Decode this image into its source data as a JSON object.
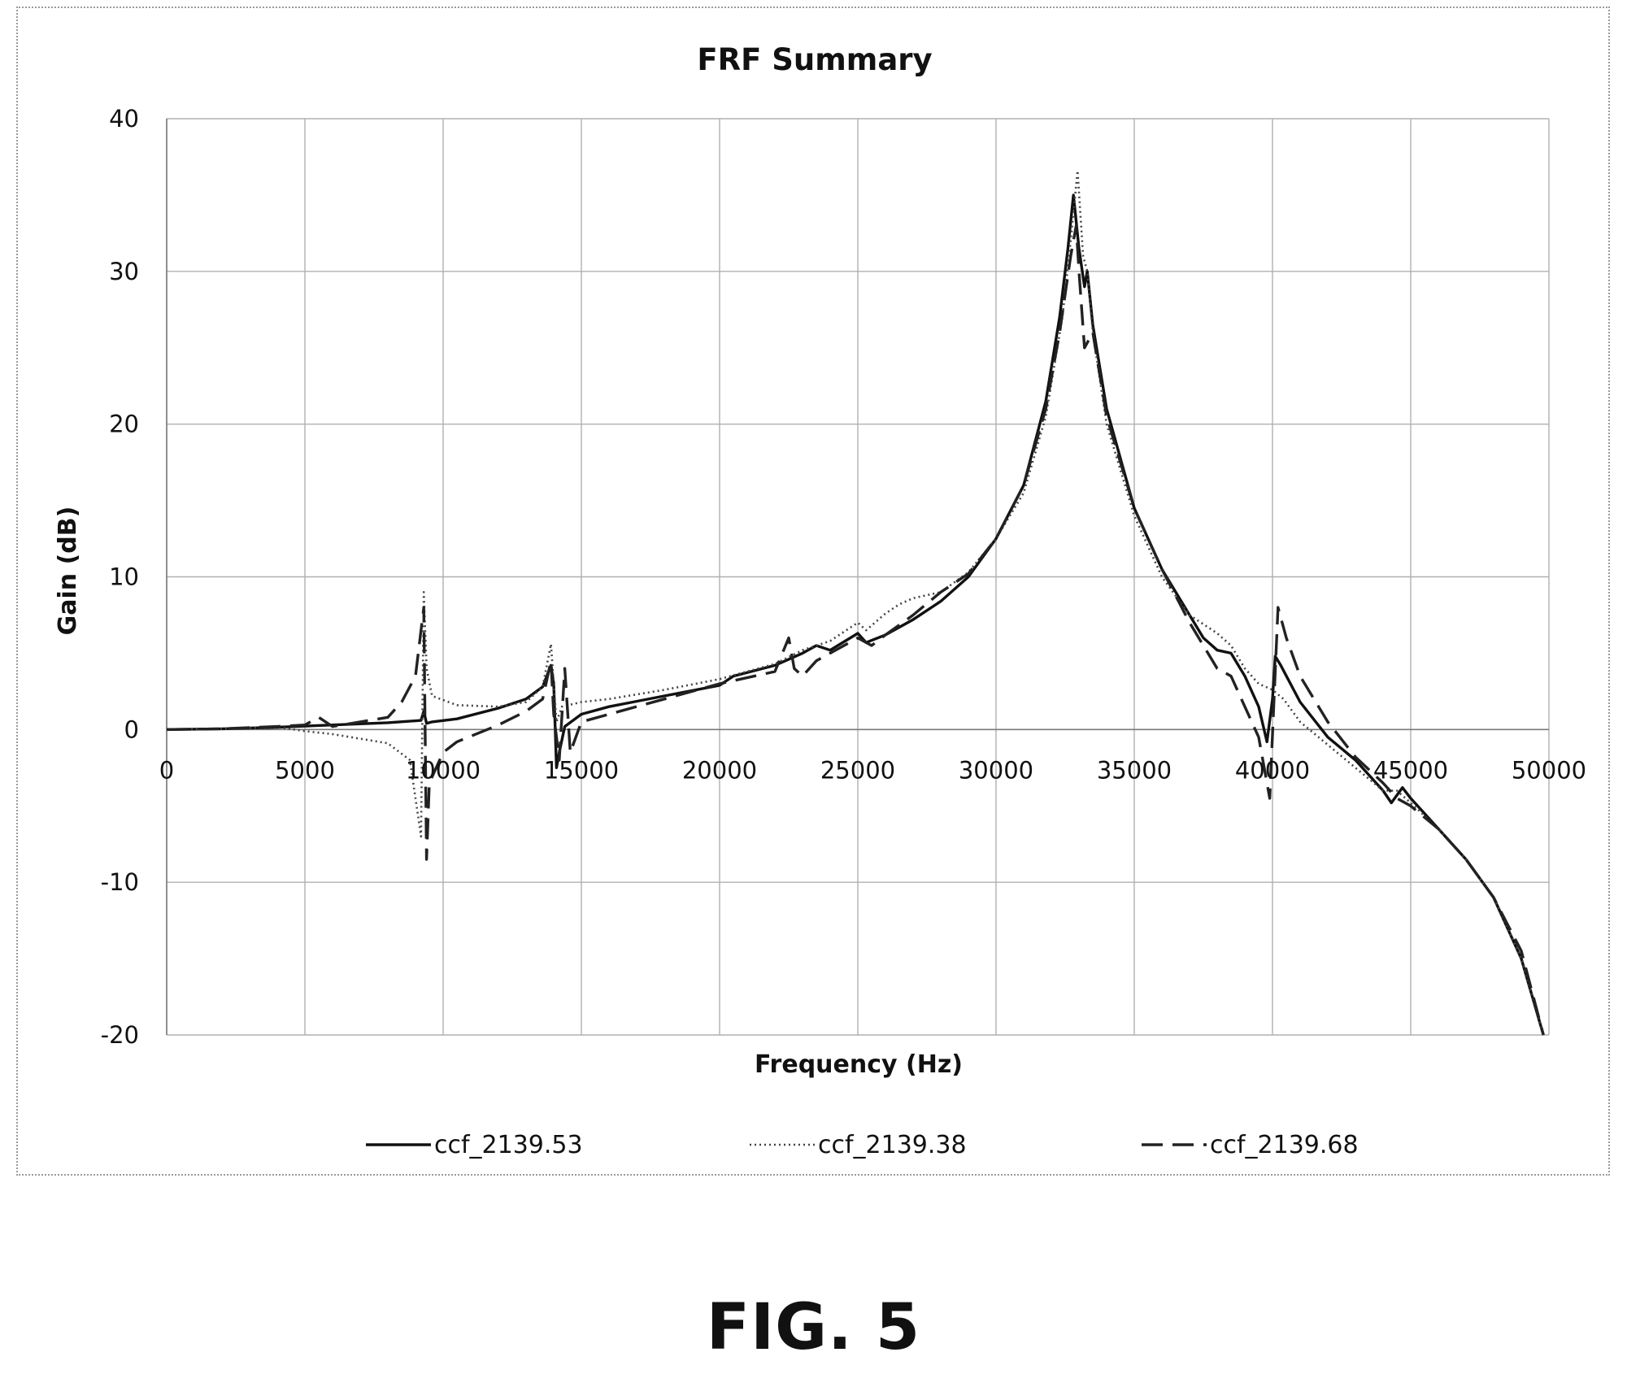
{
  "figure_caption": "FIG. 5",
  "chart_data": {
    "type": "line",
    "title": "FRF Summary",
    "xlabel": "Frequency (Hz)",
    "ylabel": "Gain (dB)",
    "xlim": [
      0,
      50000
    ],
    "ylim": [
      -20,
      40
    ],
    "xticks": [
      0,
      5000,
      10000,
      15000,
      20000,
      25000,
      30000,
      35000,
      40000,
      45000,
      50000
    ],
    "yticks": [
      -20,
      -10,
      0,
      10,
      20,
      30,
      40
    ],
    "grid": true,
    "legend_position": "bottom",
    "series": [
      {
        "name": "ccf_2139.53",
        "style": "solid",
        "color": "#111111",
        "points": [
          [
            0,
            0
          ],
          [
            2000,
            0.05
          ],
          [
            4000,
            0.15
          ],
          [
            6000,
            0.3
          ],
          [
            8000,
            0.45
          ],
          [
            9200,
            0.6
          ],
          [
            9300,
            1.2
          ],
          [
            9400,
            0.4
          ],
          [
            9600,
            0.5
          ],
          [
            10500,
            0.7
          ],
          [
            12000,
            1.4
          ],
          [
            13000,
            2.0
          ],
          [
            13600,
            2.8
          ],
          [
            13900,
            4.2
          ],
          [
            14000,
            3.0
          ],
          [
            14100,
            -2.5
          ],
          [
            14200,
            -1.5
          ],
          [
            14400,
            0.2
          ],
          [
            15000,
            1.0
          ],
          [
            16000,
            1.5
          ],
          [
            18000,
            2.2
          ],
          [
            20000,
            2.9
          ],
          [
            20500,
            3.5
          ],
          [
            22000,
            4.2
          ],
          [
            23000,
            5.0
          ],
          [
            23500,
            5.5
          ],
          [
            24000,
            5.2
          ],
          [
            25000,
            6.3
          ],
          [
            25300,
            5.7
          ],
          [
            26000,
            6.2
          ],
          [
            27000,
            7.2
          ],
          [
            28000,
            8.4
          ],
          [
            29000,
            10.0
          ],
          [
            30000,
            12.5
          ],
          [
            31000,
            16.0
          ],
          [
            31800,
            21.5
          ],
          [
            32300,
            27.0
          ],
          [
            32600,
            31.5
          ],
          [
            32800,
            35.0
          ],
          [
            33000,
            31.5
          ],
          [
            33200,
            29.0
          ],
          [
            33300,
            30.0
          ],
          [
            33500,
            26.5
          ],
          [
            34000,
            21.0
          ],
          [
            35000,
            14.5
          ],
          [
            36000,
            10.5
          ],
          [
            37000,
            7.5
          ],
          [
            37500,
            6.0
          ],
          [
            38000,
            5.2
          ],
          [
            38500,
            5.0
          ],
          [
            39000,
            3.5
          ],
          [
            39500,
            1.5
          ],
          [
            39800,
            -0.8
          ],
          [
            40000,
            2.0
          ],
          [
            40100,
            4.8
          ],
          [
            40300,
            4.2
          ],
          [
            41000,
            1.8
          ],
          [
            42000,
            -0.5
          ],
          [
            43000,
            -2.0
          ],
          [
            44000,
            -4.0
          ],
          [
            44300,
            -4.8
          ],
          [
            44700,
            -3.8
          ],
          [
            45000,
            -4.5
          ],
          [
            46000,
            -6.5
          ],
          [
            47000,
            -8.5
          ],
          [
            48000,
            -11.0
          ],
          [
            49000,
            -15.0
          ],
          [
            49800,
            -20.0
          ]
        ]
      },
      {
        "name": "ccf_2139.38",
        "style": "dotted",
        "color": "#444444",
        "points": [
          [
            0,
            0
          ],
          [
            2000,
            0.05
          ],
          [
            4000,
            0.15
          ],
          [
            5000,
            -0.1
          ],
          [
            6000,
            -0.3
          ],
          [
            7000,
            -0.6
          ],
          [
            8000,
            -0.9
          ],
          [
            8800,
            -2.0
          ],
          [
            9200,
            -7.0
          ],
          [
            9300,
            9.0
          ],
          [
            9400,
            4.0
          ],
          [
            9600,
            2.2
          ],
          [
            10500,
            1.6
          ],
          [
            12000,
            1.5
          ],
          [
            13000,
            1.8
          ],
          [
            13600,
            2.8
          ],
          [
            13900,
            5.6
          ],
          [
            14000,
            3.0
          ],
          [
            14100,
            0.5
          ],
          [
            14300,
            1.5
          ],
          [
            15000,
            1.8
          ],
          [
            16000,
            2.0
          ],
          [
            18000,
            2.6
          ],
          [
            20000,
            3.3
          ],
          [
            22000,
            4.3
          ],
          [
            23000,
            5.2
          ],
          [
            24000,
            5.8
          ],
          [
            25000,
            7.0
          ],
          [
            25300,
            6.5
          ],
          [
            26000,
            7.6
          ],
          [
            26500,
            8.2
          ],
          [
            27000,
            8.6
          ],
          [
            28000,
            9.0
          ],
          [
            29000,
            10.3
          ],
          [
            30000,
            12.5
          ],
          [
            31000,
            15.5
          ],
          [
            31800,
            20.5
          ],
          [
            32400,
            27.0
          ],
          [
            32700,
            32.0
          ],
          [
            32950,
            36.6
          ],
          [
            33150,
            31.0
          ],
          [
            33300,
            30.0
          ],
          [
            33500,
            26.0
          ],
          [
            34000,
            20.0
          ],
          [
            35000,
            14.0
          ],
          [
            36000,
            10.0
          ],
          [
            37000,
            7.5
          ],
          [
            38000,
            6.3
          ],
          [
            38500,
            5.5
          ],
          [
            39000,
            4.0
          ],
          [
            39500,
            3.0
          ],
          [
            40000,
            2.6
          ],
          [
            40400,
            2.0
          ],
          [
            41000,
            0.5
          ],
          [
            42000,
            -1.0
          ],
          [
            43000,
            -2.5
          ],
          [
            44000,
            -4.0
          ],
          [
            44500,
            -4.0
          ],
          [
            45000,
            -4.8
          ],
          [
            46000,
            -6.5
          ],
          [
            47000,
            -8.5
          ],
          [
            48000,
            -11.0
          ],
          [
            49000,
            -15.0
          ],
          [
            49800,
            -20.0
          ]
        ]
      },
      {
        "name": "ccf_2139.68",
        "style": "dashed",
        "color": "#222222",
        "points": [
          [
            0,
            0
          ],
          [
            2000,
            0.05
          ],
          [
            4000,
            0.2
          ],
          [
            5000,
            0.3
          ],
          [
            5500,
            0.8
          ],
          [
            6000,
            0.2
          ],
          [
            7000,
            0.5
          ],
          [
            8000,
            0.8
          ],
          [
            8500,
            1.8
          ],
          [
            9000,
            3.5
          ],
          [
            9300,
            8.0
          ],
          [
            9400,
            -8.5
          ],
          [
            9500,
            -3.5
          ],
          [
            10000,
            -1.5
          ],
          [
            10500,
            -0.8
          ],
          [
            12000,
            0.3
          ],
          [
            13000,
            1.2
          ],
          [
            13600,
            2.0
          ],
          [
            13900,
            4.5
          ],
          [
            14000,
            1.0
          ],
          [
            14200,
            -2.0
          ],
          [
            14400,
            4.0
          ],
          [
            14600,
            -1.5
          ],
          [
            15000,
            0.5
          ],
          [
            16000,
            1.0
          ],
          [
            18000,
            2.0
          ],
          [
            20000,
            3.0
          ],
          [
            22000,
            3.8
          ],
          [
            22500,
            6.0
          ],
          [
            22700,
            4.0
          ],
          [
            23000,
            3.5
          ],
          [
            23500,
            4.5
          ],
          [
            24000,
            5.0
          ],
          [
            25000,
            6.0
          ],
          [
            25500,
            5.5
          ],
          [
            26000,
            6.2
          ],
          [
            27000,
            7.5
          ],
          [
            28000,
            9.0
          ],
          [
            29000,
            10.2
          ],
          [
            30000,
            12.5
          ],
          [
            31000,
            16.0
          ],
          [
            31800,
            21.0
          ],
          [
            32300,
            26.0
          ],
          [
            32700,
            31.0
          ],
          [
            32900,
            33.0
          ],
          [
            33000,
            30.0
          ],
          [
            33200,
            25.0
          ],
          [
            33500,
            26.0
          ],
          [
            34000,
            20.5
          ],
          [
            35000,
            14.5
          ],
          [
            36000,
            10.5
          ],
          [
            37000,
            7.0
          ],
          [
            38000,
            4.0
          ],
          [
            38500,
            3.5
          ],
          [
            39000,
            1.5
          ],
          [
            39500,
            -0.5
          ],
          [
            39900,
            -4.5
          ],
          [
            40200,
            8.0
          ],
          [
            40500,
            6.0
          ],
          [
            41000,
            3.5
          ],
          [
            42000,
            0.5
          ],
          [
            43000,
            -1.8
          ],
          [
            44000,
            -3.5
          ],
          [
            44500,
            -4.5
          ],
          [
            45000,
            -5.0
          ],
          [
            46000,
            -6.5
          ],
          [
            47000,
            -8.5
          ],
          [
            48000,
            -11.0
          ],
          [
            49000,
            -14.5
          ],
          [
            49800,
            -20.0
          ]
        ]
      }
    ]
  }
}
